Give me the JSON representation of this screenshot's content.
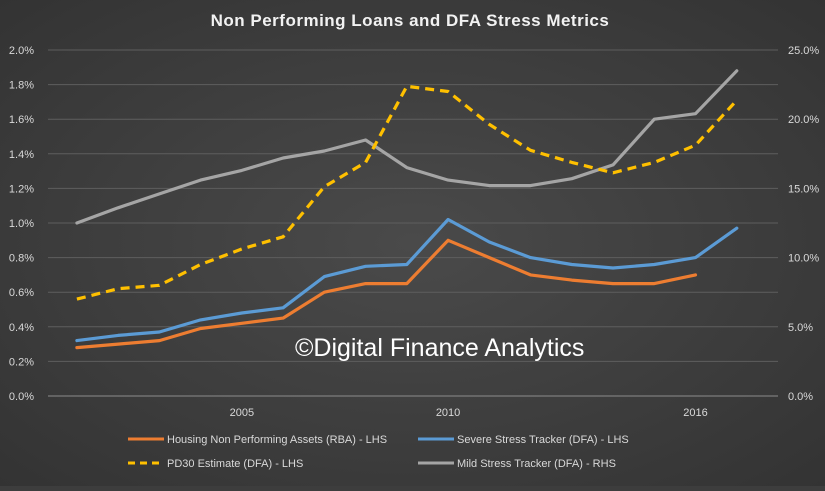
{
  "chart_data": {
    "type": "line",
    "title": "Non Performing Loans and DFA Stress Metrics",
    "watermark": "©Digital Finance Analytics",
    "x": [
      2001,
      2002,
      2003,
      2004,
      2005,
      2006,
      2007,
      2008,
      2009,
      2010,
      2011,
      2012,
      2013,
      2014,
      2015,
      2016,
      2017
    ],
    "x_tick_labels": [
      "2005",
      "2010",
      "2016"
    ],
    "x_tick_values": [
      2005,
      2010,
      2016
    ],
    "left_axis": {
      "ylim": [
        0,
        2.0
      ],
      "ticks": [
        "0.0%",
        "0.2%",
        "0.4%",
        "0.6%",
        "0.8%",
        "1.0%",
        "1.2%",
        "1.4%",
        "1.6%",
        "1.8%",
        "2.0%"
      ]
    },
    "right_axis": {
      "ylim": [
        0,
        25.0
      ],
      "ticks": [
        "0.0%",
        "5.0%",
        "10.0%",
        "15.0%",
        "20.0%",
        "25.0%"
      ]
    },
    "grid": true,
    "legend_position": "bottom",
    "series": [
      {
        "name": "Housing Non Performing Assets (RBA) - LHS",
        "axis": "left",
        "color": "#ed7d31",
        "dash": "solid",
        "values": [
          0.28,
          0.3,
          0.32,
          0.39,
          0.42,
          0.45,
          0.6,
          0.65,
          0.65,
          0.9,
          0.8,
          0.7,
          0.67,
          0.65,
          0.65,
          0.7,
          null
        ]
      },
      {
        "name": "Severe Stress Tracker (DFA) - LHS",
        "axis": "left",
        "color": "#5b9bd5",
        "dash": "solid",
        "values": [
          0.32,
          0.35,
          0.37,
          0.44,
          0.48,
          0.51,
          0.69,
          0.75,
          0.76,
          1.02,
          0.89,
          0.8,
          0.76,
          0.74,
          0.76,
          0.8,
          0.97
        ]
      },
      {
        "name": "PD30 Estimate (DFA) - LHS",
        "axis": "left",
        "color": "#ffc000",
        "dash": "dashed",
        "values": [
          0.56,
          0.62,
          0.64,
          0.76,
          0.85,
          0.92,
          1.21,
          1.35,
          1.79,
          1.76,
          1.57,
          1.42,
          1.35,
          1.29,
          1.35,
          1.45,
          1.71
        ]
      },
      {
        "name": "Mild Stress Tracker (DFA) - RHS",
        "axis": "right",
        "color": "#a5a5a5",
        "dash": "solid",
        "values": [
          12.5,
          13.6,
          14.6,
          15.6,
          16.3,
          17.2,
          17.7,
          18.5,
          16.5,
          15.6,
          15.2,
          15.2,
          15.7,
          16.7,
          20.0,
          20.4,
          23.5
        ]
      }
    ]
  }
}
